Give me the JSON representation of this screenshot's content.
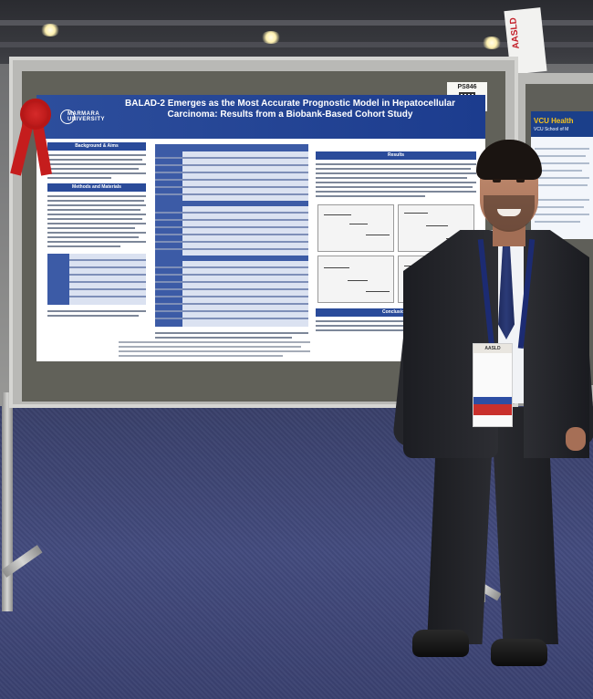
{
  "poster": {
    "title": "BALAD-2 Emerges as the Most Accurate Prognostic Model in Hepatocellular Carcinoma: Results from a Biobank-Based Cohort Study",
    "institution_logo_text": "MARMARA UNIVERSITY",
    "sections": [
      "Background & Aims",
      "Methods and Materials",
      "Results",
      "Conclusions"
    ],
    "board_number": "PS846"
  },
  "right_poster": {
    "logo": "VCU Health",
    "subtitle": "VCU School of M"
  },
  "signage": {
    "banner_text": "AASLD"
  },
  "badge": {
    "header": "AASLD"
  },
  "colors": {
    "poster_blue": "#2a4b9a",
    "ribbon_red": "#c51d1d",
    "carpet": "#434b7e"
  }
}
